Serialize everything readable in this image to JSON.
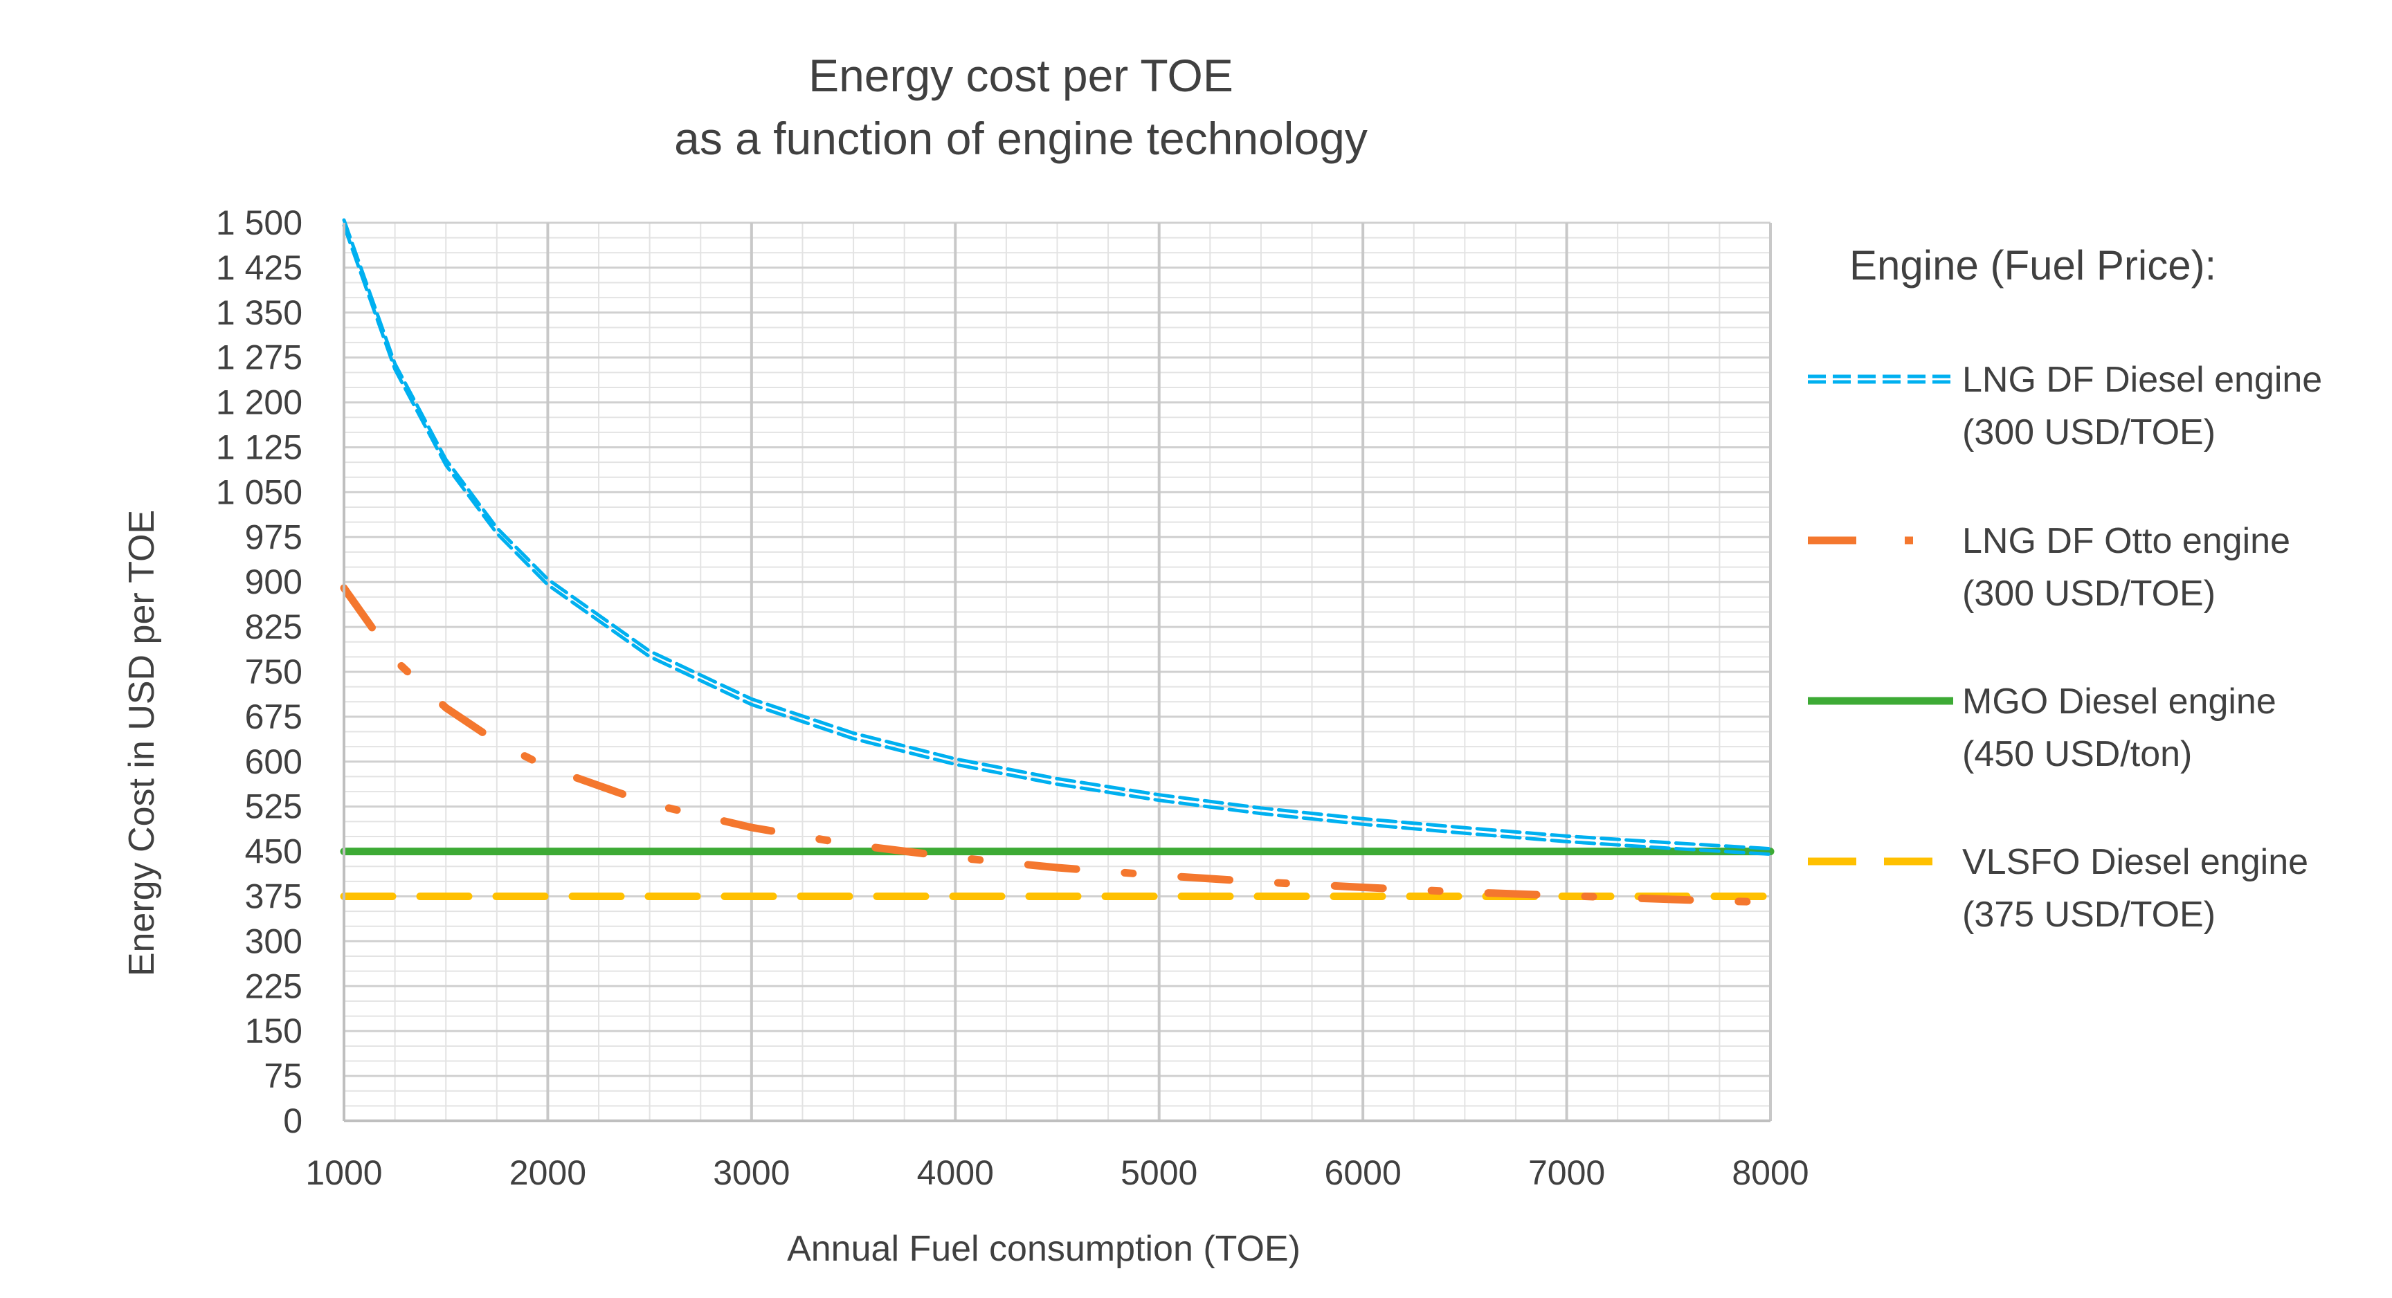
{
  "chart_data": {
    "type": "line",
    "title": [
      "Energy cost per TOE",
      "as a function of engine technology"
    ],
    "xlabel": "Annual Fuel consumption (TOE)",
    "ylabel": "Energy Cost in USD per TOE",
    "xlim": [
      1000,
      8000
    ],
    "ylim": [
      0,
      1500
    ],
    "xticks": [
      1000,
      2000,
      3000,
      4000,
      5000,
      6000,
      7000,
      8000
    ],
    "xtick_labels": [
      "1000",
      "2000",
      "3000",
      "4000",
      "5000",
      "6000",
      "7000",
      "8000"
    ],
    "yticks": [
      0,
      75,
      150,
      225,
      300,
      375,
      450,
      525,
      600,
      675,
      750,
      825,
      900,
      975,
      1050,
      1125,
      1200,
      1275,
      1350,
      1425,
      1500
    ],
    "ytick_labels": [
      "0",
      "75",
      "150",
      "225",
      "300",
      "375",
      "450",
      "525",
      "600",
      "675",
      "750",
      "825",
      "900",
      "975",
      "1 050",
      "1 125",
      "1 200",
      "1 275",
      "1 350",
      "1 425",
      "1 500"
    ],
    "grid": true,
    "legend_title": "Engine (Fuel Price):",
    "legend_position": "right",
    "x": [
      1000,
      1250,
      1500,
      1750,
      2000,
      2500,
      3000,
      3500,
      4000,
      4500,
      5000,
      5500,
      6000,
      6500,
      7000,
      7500,
      8000
    ],
    "series": [
      {
        "name": "LNG DF Diesel engine",
        "price": "(300 USD/TOE)",
        "color": "#00B0F0",
        "style": "dashed-double",
        "values": [
          1500,
          1260,
          1100,
          986,
          900,
          780,
          700,
          643,
          600,
          567,
          540,
          518,
          500,
          485,
          471,
          460,
          450
        ]
      },
      {
        "name": "LNG DF Otto engine",
        "price": "(300 USD/TOE)",
        "color": "#F4772E",
        "style": "dash-dot",
        "values": [
          890,
          770,
          690,
          633,
          590,
          530,
          490,
          461,
          440,
          423,
          410,
          399,
          390,
          382,
          376,
          370,
          365
        ]
      },
      {
        "name": "MGO Diesel  engine",
        "price": "(450 USD/ton)",
        "color": "#3DAA35",
        "style": "solid",
        "values": [
          450,
          450,
          450,
          450,
          450,
          450,
          450,
          450,
          450,
          450,
          450,
          450,
          450,
          450,
          450,
          450,
          450
        ]
      },
      {
        "name": "VLSFO Diesel engine",
        "price": "(375 USD/TOE)",
        "color": "#FFC000",
        "style": "long-dash",
        "values": [
          375,
          375,
          375,
          375,
          375,
          375,
          375,
          375,
          375,
          375,
          375,
          375,
          375,
          375,
          375,
          375,
          375
        ]
      }
    ]
  }
}
